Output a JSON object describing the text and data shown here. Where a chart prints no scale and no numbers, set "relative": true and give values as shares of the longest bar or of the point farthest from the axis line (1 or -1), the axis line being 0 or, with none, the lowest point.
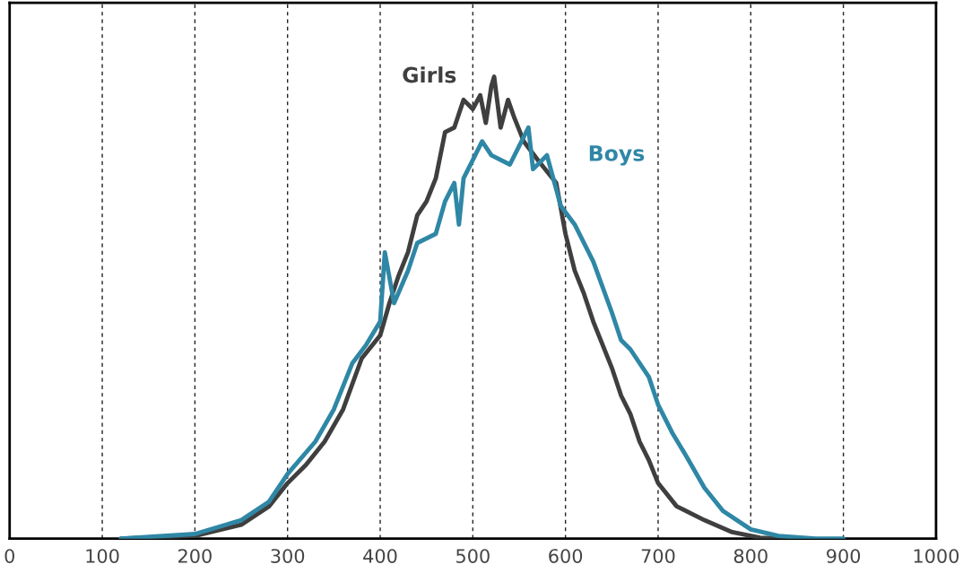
{
  "chart_data": {
    "type": "line",
    "relative": true,
    "xlim": [
      0,
      1000
    ],
    "xticks": [
      0,
      100,
      200,
      300,
      400,
      500,
      600,
      700,
      800,
      900,
      1000
    ],
    "grid": "x",
    "legend": false,
    "tick_labels": "x",
    "line_style": "solid",
    "marker": "none",
    "series": [
      {
        "name": "Girls",
        "color": "#3f3f3f",
        "x": [
          120,
          200,
          250,
          280,
          300,
          320,
          340,
          360,
          380,
          400,
          410,
          420,
          430,
          440,
          450,
          460,
          470,
          480,
          490,
          500,
          508,
          514,
          520,
          523,
          530,
          538,
          545,
          555,
          570,
          590,
          600,
          610,
          620,
          630,
          640,
          650,
          660,
          670,
          680,
          690,
          700,
          720,
          750,
          780,
          810,
          840
        ],
        "values": [
          0,
          0.006,
          0.03,
          0.07,
          0.12,
          0.16,
          0.21,
          0.28,
          0.39,
          0.44,
          0.51,
          0.57,
          0.62,
          0.7,
          0.73,
          0.78,
          0.88,
          0.89,
          0.95,
          0.93,
          0.96,
          0.9,
          0.98,
          1.0,
          0.89,
          0.95,
          0.91,
          0.86,
          0.82,
          0.77,
          0.66,
          0.58,
          0.53,
          0.47,
          0.42,
          0.37,
          0.31,
          0.27,
          0.21,
          0.17,
          0.12,
          0.07,
          0.04,
          0.014,
          0.002,
          0
        ]
      },
      {
        "name": "Boys",
        "color": "#2f87a6",
        "x": [
          120,
          200,
          250,
          280,
          300,
          330,
          350,
          370,
          385,
          400,
          405,
          415,
          430,
          440,
          460,
          470,
          480,
          485,
          490,
          500,
          510,
          520,
          540,
          550,
          560,
          565,
          580,
          595,
          610,
          630,
          650,
          660,
          670,
          690,
          700,
          715,
          730,
          750,
          770,
          800,
          830,
          870,
          900
        ],
        "values": [
          0,
          0.01,
          0.04,
          0.08,
          0.14,
          0.21,
          0.28,
          0.38,
          0.42,
          0.47,
          0.62,
          0.51,
          0.58,
          0.64,
          0.66,
          0.73,
          0.77,
          0.68,
          0.78,
          0.82,
          0.86,
          0.83,
          0.81,
          0.85,
          0.89,
          0.8,
          0.83,
          0.72,
          0.68,
          0.6,
          0.49,
          0.43,
          0.41,
          0.35,
          0.29,
          0.23,
          0.18,
          0.11,
          0.06,
          0.02,
          0.006,
          0,
          0
        ]
      }
    ]
  }
}
